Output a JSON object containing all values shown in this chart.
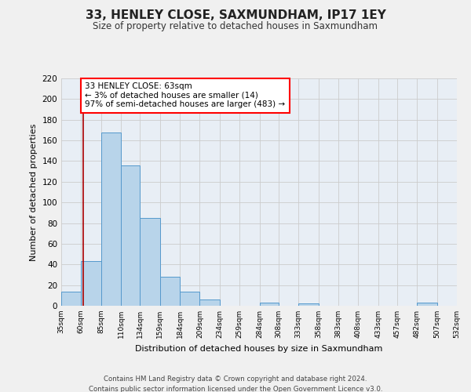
{
  "title": "33, HENLEY CLOSE, SAXMUNDHAM, IP17 1EY",
  "subtitle": "Size of property relative to detached houses in Saxmundham",
  "xlabel": "Distribution of detached houses by size in Saxmundham",
  "ylabel": "Number of detached properties",
  "bins": [
    35,
    60,
    85,
    110,
    134,
    159,
    184,
    209,
    234,
    259,
    284,
    308,
    333,
    358,
    383,
    408,
    433,
    457,
    482,
    507,
    532
  ],
  "bin_labels": [
    "35sqm",
    "60sqm",
    "85sqm",
    "110sqm",
    "134sqm",
    "159sqm",
    "184sqm",
    "209sqm",
    "234sqm",
    "259sqm",
    "284sqm",
    "308sqm",
    "333sqm",
    "358sqm",
    "383sqm",
    "408sqm",
    "433sqm",
    "457sqm",
    "482sqm",
    "507sqm",
    "532sqm"
  ],
  "counts": [
    14,
    43,
    168,
    136,
    85,
    28,
    14,
    6,
    0,
    0,
    3,
    0,
    2,
    0,
    0,
    0,
    0,
    0,
    3,
    0,
    0
  ],
  "bar_color": "#b8d4ea",
  "bar_edge_color": "#5599cc",
  "grid_color": "#cccccc",
  "bg_plot_color": "#e8eef5",
  "reference_line_x": 63,
  "reference_line_color": "#aa0000",
  "annotation_line1": "33 HENLEY CLOSE: 63sqm",
  "annotation_line2": "← 3% of detached houses are smaller (14)",
  "annotation_line3": "97% of semi-detached houses are larger (483) →",
  "annotation_box_color": "white",
  "annotation_box_edge": "red",
  "ylim": [
    0,
    220
  ],
  "yticks": [
    0,
    20,
    40,
    60,
    80,
    100,
    120,
    140,
    160,
    180,
    200,
    220
  ],
  "footer_line1": "Contains HM Land Registry data © Crown copyright and database right 2024.",
  "footer_line2": "Contains public sector information licensed under the Open Government Licence v3.0.",
  "bg_color": "#f0f0f0"
}
